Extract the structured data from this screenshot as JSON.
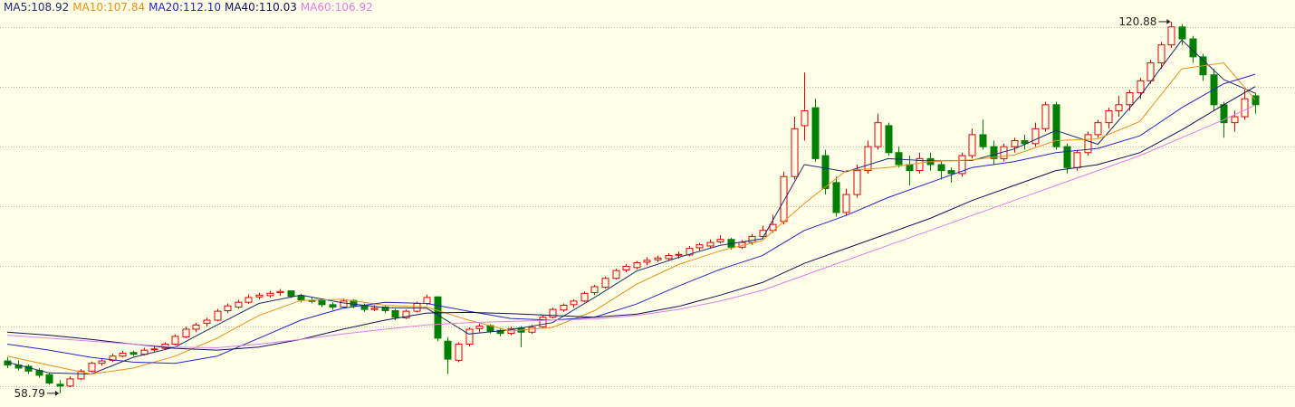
{
  "chart_data": {
    "type": "candlestick",
    "ylim": [
      56.5,
      124.5
    ],
    "yticks": [
      60,
      70,
      80,
      90,
      100,
      110,
      120
    ],
    "grid": true,
    "up_color": "#e00000",
    "down_color": "#008000",
    "ohlc": [
      [
        64.2,
        64.8,
        63.0,
        63.5
      ],
      [
        63.5,
        64.3,
        62.6,
        63.0
      ],
      [
        63.3,
        63.6,
        62.0,
        62.5
      ],
      [
        62.6,
        63.0,
        61.4,
        61.8
      ],
      [
        61.9,
        62.2,
        60.2,
        60.5
      ],
      [
        60.3,
        61.0,
        58.79,
        60.0
      ],
      [
        60.0,
        61.6,
        59.8,
        61.2
      ],
      [
        61.2,
        62.8,
        61.0,
        62.5
      ],
      [
        62.5,
        64.1,
        62.3,
        63.8
      ],
      [
        63.8,
        64.6,
        63.4,
        64.2
      ],
      [
        64.3,
        65.4,
        64.0,
        65.0
      ],
      [
        65.0,
        65.9,
        64.8,
        65.5
      ],
      [
        65.6,
        65.9,
        65.0,
        65.3
      ],
      [
        65.3,
        66.4,
        65.1,
        66.0
      ],
      [
        66.1,
        66.6,
        65.7,
        66.2
      ],
      [
        66.3,
        67.3,
        66.0,
        67.0
      ],
      [
        67.0,
        68.6,
        66.8,
        68.3
      ],
      [
        68.2,
        69.9,
        68.0,
        69.5
      ],
      [
        69.5,
        70.6,
        69.0,
        70.2
      ],
      [
        70.5,
        71.4,
        70.0,
        71.0
      ],
      [
        71.0,
        72.9,
        70.8,
        72.5
      ],
      [
        72.6,
        73.8,
        72.2,
        73.4
      ],
      [
        73.2,
        74.4,
        72.9,
        74.0
      ],
      [
        74.0,
        75.3,
        73.7,
        74.8
      ],
      [
        74.9,
        75.6,
        74.5,
        75.2
      ],
      [
        75.1,
        75.9,
        74.8,
        75.5
      ],
      [
        75.6,
        76.2,
        75.1,
        75.8
      ],
      [
        75.9,
        76.0,
        74.7,
        75.0
      ],
      [
        75.1,
        75.4,
        74.0,
        74.4
      ],
      [
        74.3,
        74.9,
        73.8,
        74.2
      ],
      [
        74.4,
        74.6,
        73.2,
        73.6
      ],
      [
        73.6,
        74.0,
        72.7,
        73.2
      ],
      [
        73.2,
        74.6,
        73.0,
        74.2
      ],
      [
        74.3,
        74.5,
        73.0,
        73.4
      ],
      [
        73.5,
        73.8,
        72.4,
        72.8
      ],
      [
        72.8,
        73.5,
        72.5,
        73.0
      ],
      [
        73.2,
        73.4,
        72.2,
        72.6
      ],
      [
        72.6,
        72.9,
        71.0,
        71.5
      ],
      [
        71.4,
        72.8,
        71.2,
        72.5
      ],
      [
        72.5,
        74.1,
        72.3,
        73.8
      ],
      [
        73.8,
        75.3,
        73.5,
        74.8
      ],
      [
        74.9,
        75.0,
        67.5,
        68.0
      ],
      [
        67.5,
        68.2,
        62.0,
        64.5
      ],
      [
        64.3,
        67.3,
        64.0,
        67.0
      ],
      [
        67.0,
        69.8,
        66.6,
        69.5
      ],
      [
        69.6,
        70.4,
        69.0,
        70.0
      ],
      [
        70.1,
        70.3,
        68.8,
        69.2
      ],
      [
        69.3,
        69.6,
        68.3,
        68.8
      ],
      [
        68.8,
        69.9,
        68.5,
        69.6
      ],
      [
        69.7,
        70.0,
        66.5,
        69.0
      ],
      [
        69.0,
        70.2,
        68.7,
        69.8
      ],
      [
        69.9,
        71.8,
        69.6,
        71.5
      ],
      [
        71.5,
        73.1,
        71.3,
        72.8
      ],
      [
        72.7,
        73.8,
        72.4,
        73.5
      ],
      [
        73.6,
        74.5,
        73.1,
        74.2
      ],
      [
        74.2,
        75.8,
        74.0,
        75.5
      ],
      [
        75.6,
        76.9,
        75.2,
        76.6
      ],
      [
        76.5,
        78.3,
        76.3,
        78.0
      ],
      [
        78.0,
        79.6,
        77.8,
        79.3
      ],
      [
        79.4,
        80.4,
        79.0,
        80.0
      ],
      [
        79.8,
        80.9,
        79.5,
        80.6
      ],
      [
        80.7,
        81.5,
        80.2,
        81.0
      ],
      [
        81.1,
        81.8,
        80.7,
        81.4
      ],
      [
        81.3,
        82.2,
        81.0,
        81.8
      ],
      [
        82.0,
        82.5,
        81.3,
        82.0
      ],
      [
        81.9,
        83.4,
        81.7,
        83.0
      ],
      [
        83.1,
        83.9,
        82.6,
        83.6
      ],
      [
        83.4,
        84.5,
        83.1,
        84.0
      ],
      [
        84.1,
        85.2,
        83.8,
        84.5
      ],
      [
        84.5,
        84.8,
        82.8,
        83.2
      ],
      [
        83.2,
        84.4,
        82.9,
        84.0
      ],
      [
        84.0,
        85.4,
        83.6,
        85.0
      ],
      [
        85.0,
        86.8,
        84.6,
        86.0
      ],
      [
        86.0,
        88.6,
        85.6,
        87.0
      ],
      [
        87.5,
        95.8,
        87.0,
        95.0
      ],
      [
        95.0,
        105.0,
        94.5,
        103.0
      ],
      [
        103.5,
        112.4,
        101.0,
        106.0
      ],
      [
        106.5,
        108.0,
        97.5,
        98.0
      ],
      [
        98.5,
        99.5,
        92.0,
        93.0
      ],
      [
        94.0,
        95.0,
        88.3,
        89.0
      ],
      [
        89.0,
        93.0,
        88.5,
        92.0
      ],
      [
        92.0,
        97.0,
        91.5,
        96.0
      ],
      [
        96.0,
        101.0,
        95.5,
        100.0
      ],
      [
        100.0,
        105.5,
        99.5,
        104.0
      ],
      [
        103.5,
        104.0,
        98.5,
        99.0
      ],
      [
        99.0,
        100.0,
        96.5,
        97.0
      ],
      [
        97.0,
        98.5,
        93.5,
        96.0
      ],
      [
        96.0,
        99.0,
        95.5,
        98.0
      ],
      [
        98.0,
        99.0,
        96.0,
        97.0
      ],
      [
        97.0,
        97.5,
        94.5,
        96.0
      ],
      [
        96.0,
        96.5,
        94.0,
        95.5
      ],
      [
        95.5,
        99.0,
        95.0,
        98.5
      ],
      [
        98.5,
        103.0,
        98.0,
        102.0
      ],
      [
        102.0,
        104.5,
        99.5,
        100.0
      ],
      [
        100.0,
        101.0,
        97.0,
        98.0
      ],
      [
        98.0,
        100.5,
        97.5,
        100.0
      ],
      [
        100.0,
        101.5,
        99.0,
        101.0
      ],
      [
        101.0,
        102.0,
        99.5,
        100.5
      ],
      [
        100.5,
        104.0,
        100.0,
        103.0
      ],
      [
        103.0,
        107.5,
        102.5,
        107.0
      ],
      [
        107.0,
        107.5,
        99.5,
        100.0
      ],
      [
        100.0,
        100.5,
        95.5,
        96.5
      ],
      [
        96.5,
        99.5,
        96.0,
        99.0
      ],
      [
        99.0,
        102.5,
        98.5,
        102.0
      ],
      [
        102.0,
        104.5,
        101.5,
        104.0
      ],
      [
        104.0,
        106.5,
        103.0,
        106.0
      ],
      [
        106.0,
        108.5,
        105.0,
        107.0
      ],
      [
        107.0,
        109.5,
        106.0,
        109.0
      ],
      [
        109.0,
        111.5,
        108.0,
        111.0
      ],
      [
        111.0,
        114.5,
        110.5,
        114.0
      ],
      [
        114.0,
        117.5,
        113.0,
        117.0
      ],
      [
        117.0,
        120.88,
        116.5,
        120.0
      ],
      [
        120.0,
        120.5,
        117.0,
        118.0
      ],
      [
        118.0,
        118.5,
        114.0,
        115.0
      ],
      [
        115.0,
        115.5,
        111.0,
        112.0
      ],
      [
        112.0,
        113.0,
        106.0,
        107.0
      ],
      [
        107.0,
        107.5,
        101.5,
        104.0
      ],
      [
        104.0,
        106.0,
        102.5,
        105.0
      ],
      [
        105.0,
        109.5,
        104.5,
        108.0
      ],
      [
        108.5,
        109.0,
        105.5,
        107.0
      ]
    ],
    "x": [
      0,
      4,
      8,
      12,
      16,
      20,
      24,
      28,
      32,
      36,
      40,
      44,
      48,
      52,
      56,
      60,
      64,
      68,
      72,
      76,
      80,
      84,
      88,
      92,
      96,
      100,
      104,
      108,
      112,
      116,
      119
    ],
    "series": [
      {
        "name": "MA5:108.92",
        "color": "#1e2a6e",
        "values": [
          64,
          62.2,
          62,
          64.8,
          66.5,
          70.2,
          73.8,
          75.2,
          73.9,
          73.1,
          73,
          68.7,
          69.4,
          70.6,
          74.8,
          79.2,
          81.5,
          83.5,
          84.6,
          97,
          95.8,
          98,
          97.6,
          97.7,
          99.6,
          102.7,
          100.4,
          108.4,
          117.8,
          111.2,
          108.92
        ]
      },
      {
        "name": "MA10:107.84",
        "color": "#e8901a",
        "values": [
          65,
          63.5,
          62,
          63,
          65,
          68,
          71.8,
          74.3,
          74.5,
          73.5,
          73.2,
          71,
          69.2,
          69.8,
          72.6,
          77,
          80.3,
          82.6,
          84.3,
          90.5,
          96,
          96.5,
          97.5,
          97.8,
          98.6,
          101,
          101.3,
          104.2,
          113,
          114,
          107.84
        ]
      },
      {
        "name": "MA20:112.10",
        "color": "#2424c8",
        "values": [
          67,
          66,
          64.8,
          64,
          63.8,
          65,
          68,
          71,
          73,
          74,
          73.8,
          72.5,
          71.3,
          71,
          71.5,
          73.7,
          76.7,
          79.5,
          81.8,
          86,
          88.5,
          91.5,
          94,
          96.5,
          97.5,
          99,
          99.7,
          101.8,
          106.5,
          110.5,
          112.1
        ]
      },
      {
        "name": "MA40:110.03",
        "color": "#10105a",
        "values": [
          69,
          68.5,
          67.8,
          67,
          66.3,
          66,
          66.5,
          67.8,
          69.5,
          71,
          72.2,
          72.3,
          72.1,
          71.8,
          71.5,
          72,
          73.3,
          75.2,
          77.3,
          80.5,
          83,
          85.5,
          88,
          91,
          93.5,
          96,
          97,
          99,
          102.8,
          107,
          110.03
        ]
      },
      {
        "name": "MA60:106.92",
        "color": "#e07ee8",
        "values": [
          68.5,
          68,
          67.5,
          67,
          66.5,
          66.4,
          67,
          67.8,
          68.7,
          69.5,
          70.2,
          70.6,
          70.8,
          71,
          71.2,
          71.8,
          72.8,
          74.2,
          76,
          78.5,
          81,
          83.5,
          86,
          88.5,
          91,
          93.5,
          96,
          98.5,
          101.5,
          104.5,
          106.92
        ]
      }
    ],
    "annotations": [
      {
        "value": 120.88
      },
      {
        "value": 58.79
      }
    ]
  }
}
